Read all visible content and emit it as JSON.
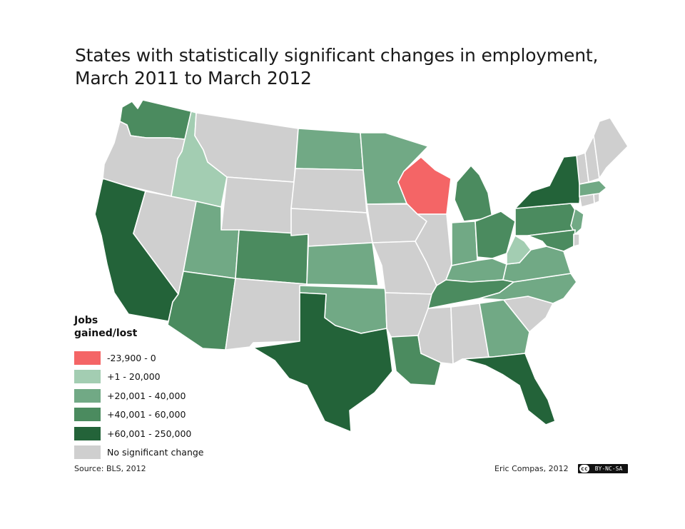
{
  "title": {
    "line1": "States with statistically significant changes in employment,",
    "line2": "March 2011 to March 2012"
  },
  "legend": {
    "title": "Jobs gained/lost",
    "items": [
      {
        "key": "loss",
        "label": "-23,900 - 0",
        "color": "#f46566"
      },
      {
        "key": "c1",
        "label": "+1 - 20,000",
        "color": "#a3cdb2"
      },
      {
        "key": "c2",
        "label": "+20,001 - 40,000",
        "color": "#71a985"
      },
      {
        "key": "c3",
        "label": "+40,001 - 60,000",
        "color": "#4b8b5f"
      },
      {
        "key": "c4",
        "label": "+60,001 - 250,000",
        "color": "#236339"
      },
      {
        "key": "none",
        "label": "No significant change",
        "color": "#cfcfcf"
      }
    ]
  },
  "states": {
    "WA": "c3",
    "OR": "none",
    "CA": "c4",
    "NV": "none",
    "ID": "c1",
    "MT": "none",
    "WY": "none",
    "UT": "c2",
    "AZ": "c3",
    "CO": "c3",
    "NM": "none",
    "ND": "c2",
    "SD": "none",
    "NE": "none",
    "KS": "c2",
    "OK": "c2",
    "TX": "c4",
    "MN": "c2",
    "IA": "none",
    "MO": "none",
    "AR": "none",
    "LA": "c3",
    "WI": "loss",
    "IL": "none",
    "MI": "c3",
    "IN": "c2",
    "OH": "c3",
    "KY": "c2",
    "TN": "c3",
    "MS": "none",
    "AL": "none",
    "GA": "c2",
    "FL": "c4",
    "SC": "none",
    "NC": "c2",
    "VA": "c2",
    "WV": "c1",
    "PA": "c3",
    "NY": "c4",
    "NJ": "c2",
    "DE": "none",
    "MD": "c3",
    "CT": "none",
    "RI": "none",
    "MA": "c2",
    "VT": "none",
    "NH": "none",
    "ME": "none"
  },
  "footer": {
    "source": "Source: BLS, 2012",
    "credit": "Eric Compas, 2012",
    "license_badge": "BY-NC-SA"
  }
}
